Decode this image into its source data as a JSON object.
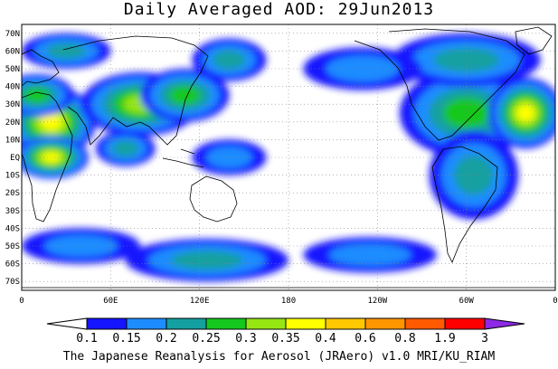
{
  "title": "Daily Averaged AOD: 29Jun2013",
  "footer": "The Japanese Reanalysis for Aerosol (JRAero) v1.0 MRI/KU_RIAM",
  "lat_labels": [
    "70N",
    "60N",
    "50N",
    "40N",
    "30N",
    "20N",
    "10N",
    "EQ",
    "10S",
    "20S",
    "30S",
    "40S",
    "50S",
    "60S",
    "70S"
  ],
  "lon_labels": [
    "0",
    "60E",
    "120E",
    "180",
    "120W",
    "60W",
    "0"
  ],
  "colorbar": {
    "labels": [
      "0.1",
      "0.15",
      "0.2",
      "0.25",
      "0.3",
      "0.35",
      "0.4",
      "0.6",
      "0.8",
      "1.9",
      "3"
    ],
    "colors": [
      "#ffffff",
      "#1414ff",
      "#1e8cff",
      "#14a0a0",
      "#14c81e",
      "#96e614",
      "#ffff00",
      "#ffc800",
      "#ff9600",
      "#ff5a00",
      "#ff0000",
      "#8c28e6"
    ]
  },
  "map": {
    "extent": {
      "lon": [
        0,
        360
      ],
      "lat": [
        -75,
        75
      ]
    },
    "plumes": [
      {
        "lon": 20,
        "lat": 20,
        "rx": 30,
        "ry": 20,
        "level": 6
      },
      {
        "lon": 10,
        "lat": 35,
        "rx": 25,
        "ry": 12,
        "level": 4
      },
      {
        "lon": 80,
        "lat": 30,
        "rx": 40,
        "ry": 18,
        "level": 5
      },
      {
        "lon": 110,
        "lat": 35,
        "rx": 30,
        "ry": 15,
        "level": 4
      },
      {
        "lon": 140,
        "lat": 55,
        "rx": 25,
        "ry": 12,
        "level": 3
      },
      {
        "lon": 20,
        "lat": 0,
        "rx": 25,
        "ry": 12,
        "level": 6
      },
      {
        "lon": 70,
        "lat": 5,
        "rx": 20,
        "ry": 10,
        "level": 3
      },
      {
        "lon": 140,
        "lat": 0,
        "rx": 25,
        "ry": 10,
        "level": 2
      },
      {
        "lon": 300,
        "lat": 25,
        "rx": 45,
        "ry": 25,
        "level": 4
      },
      {
        "lon": 340,
        "lat": 25,
        "rx": 25,
        "ry": 20,
        "level": 6
      },
      {
        "lon": 300,
        "lat": 55,
        "rx": 50,
        "ry": 15,
        "level": 3
      },
      {
        "lon": 230,
        "lat": 50,
        "rx": 40,
        "ry": 12,
        "level": 2
      },
      {
        "lon": 305,
        "lat": -10,
        "rx": 30,
        "ry": 25,
        "level": 3
      },
      {
        "lon": 40,
        "lat": -50,
        "rx": 40,
        "ry": 10,
        "level": 2
      },
      {
        "lon": 125,
        "lat": -58,
        "rx": 55,
        "ry": 12,
        "level": 3
      },
      {
        "lon": 235,
        "lat": -55,
        "rx": 45,
        "ry": 10,
        "level": 2
      },
      {
        "lon": 30,
        "lat": 60,
        "rx": 30,
        "ry": 10,
        "level": 3
      }
    ]
  }
}
